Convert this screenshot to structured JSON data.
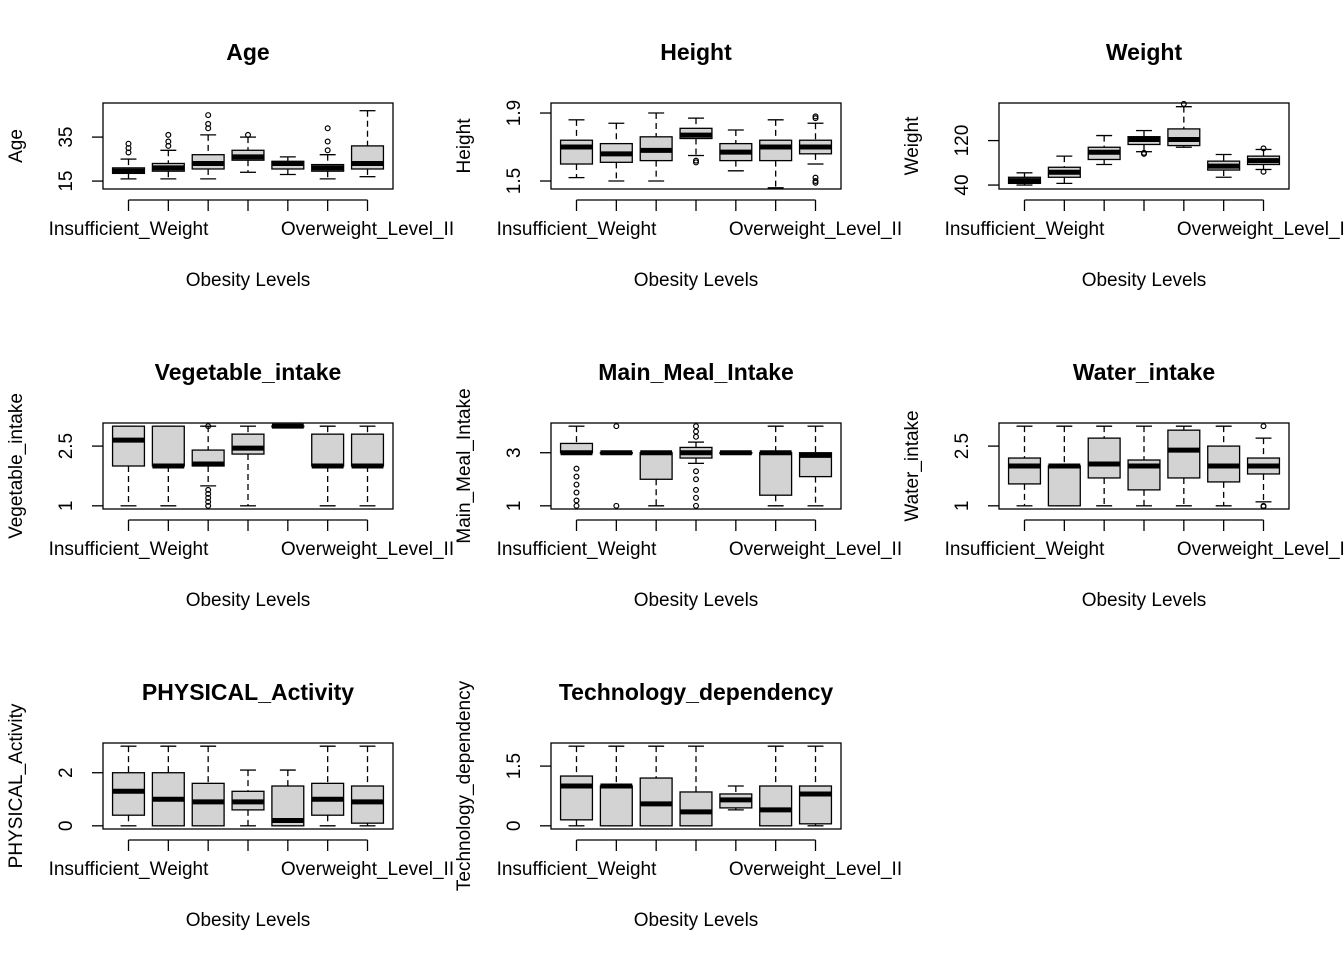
{
  "chart_data": [
    {
      "type": "box",
      "title": "Age",
      "xlabel": "Obesity Levels",
      "ylabel": "Age",
      "color": "#d3d3d3",
      "categories": [
        "Insufficient_Weight",
        null,
        null,
        null,
        null,
        null,
        "Overweight_Level_II"
      ],
      "ylim": [
        11.4,
        50.5
      ],
      "yticks": [
        15,
        35
      ],
      "boxes": [
        {
          "min": 16,
          "q1": 18.5,
          "median": 19.5,
          "q3": 21,
          "max": 25,
          "outliers": [
            28,
            30,
            32
          ]
        },
        {
          "min": 16,
          "q1": 19.5,
          "median": 21,
          "q3": 23,
          "max": 29,
          "outliers": [
            31,
            33,
            36
          ]
        },
        {
          "min": 16,
          "q1": 20.5,
          "median": 23,
          "q3": 27,
          "max": 36,
          "outliers": [
            39,
            41,
            45
          ]
        },
        {
          "min": 19,
          "q1": 24.5,
          "median": 26,
          "q3": 29,
          "max": 35,
          "outliers": [
            36
          ]
        },
        {
          "min": 18,
          "q1": 20.5,
          "median": 23,
          "q3": 24,
          "max": 26,
          "outliers": []
        },
        {
          "min": 16,
          "q1": 19.5,
          "median": 21,
          "q3": 22.5,
          "max": 27,
          "outliers": [
            29,
            33,
            39
          ]
        },
        {
          "min": 17,
          "q1": 20.5,
          "median": 23,
          "q3": 31,
          "max": 47,
          "outliers": []
        }
      ]
    },
    {
      "type": "box",
      "title": "Height",
      "xlabel": "Obesity Levels",
      "ylabel": "Height",
      "color": "#d3d3d3",
      "categories": [
        "Insufficient_Weight",
        null,
        null,
        null,
        null,
        null,
        "Overweight_Level_II"
      ],
      "ylim": [
        1.453,
        1.959
      ],
      "yticks": [
        1.5,
        1.9
      ],
      "boxes": [
        {
          "min": 1.52,
          "q1": 1.6,
          "median": 1.7,
          "q3": 1.74,
          "max": 1.86,
          "outliers": []
        },
        {
          "min": 1.5,
          "q1": 1.61,
          "median": 1.66,
          "q3": 1.72,
          "max": 1.84,
          "outliers": []
        },
        {
          "min": 1.5,
          "q1": 1.62,
          "median": 1.68,
          "q3": 1.76,
          "max": 1.9,
          "outliers": []
        },
        {
          "min": 1.65,
          "q1": 1.75,
          "median": 1.77,
          "q3": 1.81,
          "max": 1.87,
          "outliers": [
            1.62,
            1.61
          ]
        },
        {
          "min": 1.56,
          "q1": 1.62,
          "median": 1.67,
          "q3": 1.72,
          "max": 1.8,
          "outliers": []
        },
        {
          "min": 1.46,
          "q1": 1.62,
          "median": 1.7,
          "q3": 1.74,
          "max": 1.86,
          "outliers": []
        },
        {
          "min": 1.6,
          "q1": 1.66,
          "median": 1.7,
          "q3": 1.74,
          "max": 1.84,
          "outliers": [
            1.87,
            1.88,
            1.52,
            1.5,
            1.49
          ]
        }
      ]
    },
    {
      "type": "box",
      "title": "Weight",
      "xlabel": "Obesity Levels",
      "ylabel": "Weight",
      "color": "#d3d3d3",
      "categories": [
        "Insufficient_Weight",
        null,
        null,
        null,
        null,
        null,
        "Overweight_Level_II"
      ],
      "ylim": [
        32.9,
        187.6
      ],
      "yticks": [
        40,
        120
      ],
      "boxes": [
        {
          "min": 40,
          "q1": 43,
          "median": 48,
          "q3": 54,
          "max": 62,
          "outliers": []
        },
        {
          "min": 43,
          "q1": 54,
          "median": 63,
          "q3": 72,
          "max": 92,
          "outliers": []
        },
        {
          "min": 77,
          "q1": 86,
          "median": 99,
          "q3": 108,
          "max": 129,
          "outliers": []
        },
        {
          "min": 100,
          "q1": 113,
          "median": 122,
          "q3": 127,
          "max": 138,
          "outliers": [
            96,
            98
          ]
        },
        {
          "min": 108,
          "q1": 111,
          "median": 122,
          "q3": 141,
          "max": 181,
          "outliers": [
            186
          ]
        },
        {
          "min": 54,
          "q1": 67,
          "median": 74,
          "q3": 83,
          "max": 95,
          "outliers": []
        },
        {
          "min": 68,
          "q1": 77,
          "median": 84,
          "q3": 92,
          "max": 104,
          "outliers": [
            106,
            64
          ]
        }
      ]
    },
    {
      "type": "box",
      "title": "Vegetable_intake",
      "xlabel": "Obesity Levels",
      "ylabel": "Vegetable_intake",
      "color": "#d3d3d3",
      "categories": [
        "Insufficient_Weight",
        null,
        null,
        null,
        null,
        null,
        "Overweight_Level_II"
      ],
      "ylim": [
        0.92,
        3.08
      ],
      "yticks": [
        1.0,
        2.5
      ],
      "boxes": [
        {
          "min": 1,
          "q1": 2,
          "median": 2.65,
          "q3": 3,
          "max": 3,
          "outliers": []
        },
        {
          "min": 1,
          "q1": 2,
          "median": 2,
          "q3": 3,
          "max": 3,
          "outliers": []
        },
        {
          "min": 1.5,
          "q1": 2,
          "median": 2.05,
          "q3": 2.4,
          "max": 3,
          "outliers": [
            3,
            1,
            1.1,
            1.2,
            1.3,
            1.4
          ]
        },
        {
          "min": 1,
          "q1": 2.3,
          "median": 2.45,
          "q3": 2.8,
          "max": 3,
          "outliers": []
        },
        {
          "min": 3,
          "q1": 3,
          "median": 3,
          "q3": 3,
          "max": 3,
          "outliers": []
        },
        {
          "min": 1,
          "q1": 2,
          "median": 2,
          "q3": 2.8,
          "max": 3,
          "outliers": []
        },
        {
          "min": 1,
          "q1": 2,
          "median": 2,
          "q3": 2.8,
          "max": 3,
          "outliers": []
        }
      ]
    },
    {
      "type": "box",
      "title": "Main_Meal_Intake",
      "xlabel": "Obesity Levels",
      "ylabel": "Main_Meal_Intake",
      "color": "#d3d3d3",
      "categories": [
        "Insufficient_Weight",
        null,
        null,
        null,
        null,
        null,
        "Overweight_Level_II"
      ],
      "ylim": [
        0.88,
        4.12
      ],
      "yticks": [
        1.0,
        3.0
      ],
      "boxes": [
        {
          "min": 3,
          "q1": 3,
          "median": 3,
          "q3": 3.35,
          "max": 4,
          "outliers": [
            1,
            1.2,
            1.5,
            1.8,
            2.1,
            2.4
          ]
        },
        {
          "min": 3,
          "q1": 3,
          "median": 3,
          "q3": 3,
          "max": 3,
          "outliers": [
            4,
            1
          ]
        },
        {
          "min": 1,
          "q1": 2,
          "median": 3,
          "q3": 3,
          "max": 3,
          "outliers": []
        },
        {
          "min": 2.6,
          "q1": 2.8,
          "median": 3,
          "q3": 3.2,
          "max": 3.4,
          "outliers": [
            4,
            3.8,
            3.6,
            1,
            1.3,
            1.6,
            2,
            2.3
          ]
        },
        {
          "min": 3,
          "q1": 3,
          "median": 3,
          "q3": 3,
          "max": 3,
          "outliers": []
        },
        {
          "min": 1,
          "q1": 1.4,
          "median": 3,
          "q3": 3,
          "max": 4,
          "outliers": []
        },
        {
          "min": 1,
          "q1": 2.1,
          "median": 2.9,
          "q3": 3,
          "max": 4,
          "outliers": []
        }
      ]
    },
    {
      "type": "box",
      "title": "Water_intake",
      "xlabel": "Obesity Levels",
      "ylabel": "Water_intake",
      "color": "#d3d3d3",
      "categories": [
        "Insufficient_Weight",
        null,
        null,
        null,
        null,
        null,
        "Overweight_Level_II"
      ],
      "ylim": [
        0.92,
        3.08
      ],
      "yticks": [
        1.0,
        2.5
      ],
      "boxes": [
        {
          "min": 1,
          "q1": 1.55,
          "median": 2,
          "q3": 2.2,
          "max": 3,
          "outliers": []
        },
        {
          "min": 1,
          "q1": 1,
          "median": 2,
          "q3": 2,
          "max": 3,
          "outliers": []
        },
        {
          "min": 1,
          "q1": 1.7,
          "median": 2.05,
          "q3": 2.7,
          "max": 3,
          "outliers": []
        },
        {
          "min": 1,
          "q1": 1.4,
          "median": 2,
          "q3": 2.15,
          "max": 3,
          "outliers": []
        },
        {
          "min": 1,
          "q1": 1.7,
          "median": 2.4,
          "q3": 2.9,
          "max": 3,
          "outliers": []
        },
        {
          "min": 1,
          "q1": 1.6,
          "median": 2,
          "q3": 2.5,
          "max": 3,
          "outliers": []
        },
        {
          "min": 1.1,
          "q1": 1.8,
          "median": 2,
          "q3": 2.2,
          "max": 2.7,
          "outliers": [
            3,
            1,
            0.98
          ]
        }
      ]
    },
    {
      "type": "box",
      "title": "PHYSICAL_Activity",
      "xlabel": "Obesity Levels",
      "ylabel": "PHYSICAL_Activity",
      "color": "#d3d3d3",
      "categories": [
        "Insufficient_Weight",
        null,
        null,
        null,
        null,
        null,
        "Overweight_Level_II"
      ],
      "ylim": [
        -0.12,
        3.12
      ],
      "yticks": [
        0.0,
        2.0
      ],
      "boxes": [
        {
          "min": 0,
          "q1": 0.4,
          "median": 1.3,
          "q3": 2,
          "max": 3,
          "outliers": []
        },
        {
          "min": 0,
          "q1": 0,
          "median": 1,
          "q3": 2,
          "max": 3,
          "outliers": []
        },
        {
          "min": 0,
          "q1": 0,
          "median": 0.9,
          "q3": 1.6,
          "max": 3,
          "outliers": []
        },
        {
          "min": 0,
          "q1": 0.6,
          "median": 0.9,
          "q3": 1.3,
          "max": 2.1,
          "outliers": []
        },
        {
          "min": 0,
          "q1": 0,
          "median": 0.2,
          "q3": 1.5,
          "max": 2.1,
          "outliers": []
        },
        {
          "min": 0,
          "q1": 0.4,
          "median": 1,
          "q3": 1.6,
          "max": 3,
          "outliers": []
        },
        {
          "min": 0,
          "q1": 0.1,
          "median": 0.9,
          "q3": 1.5,
          "max": 3,
          "outliers": []
        }
      ]
    },
    {
      "type": "box",
      "title": "Technology_dependency",
      "xlabel": "Obesity Levels",
      "ylabel": "Technology_dependency",
      "color": "#d3d3d3",
      "categories": [
        "Insufficient_Weight",
        null,
        null,
        null,
        null,
        null,
        "Overweight_Level_II"
      ],
      "ylim": [
        -0.08,
        2.08
      ],
      "yticks": [
        0.0,
        1.5
      ],
      "boxes": [
        {
          "min": 0,
          "q1": 0.15,
          "median": 1,
          "q3": 1.25,
          "max": 2,
          "outliers": []
        },
        {
          "min": 0,
          "q1": 0,
          "median": 1,
          "q3": 1,
          "max": 2,
          "outliers": []
        },
        {
          "min": 0,
          "q1": 0,
          "median": 0.55,
          "q3": 1.2,
          "max": 2,
          "outliers": []
        },
        {
          "min": 0,
          "q1": 0,
          "median": 0.35,
          "q3": 0.85,
          "max": 2,
          "outliers": []
        },
        {
          "min": 0.4,
          "q1": 0.45,
          "median": 0.65,
          "q3": 0.8,
          "max": 1.0,
          "outliers": []
        },
        {
          "min": 0,
          "q1": 0,
          "median": 0.4,
          "q3": 1,
          "max": 2,
          "outliers": []
        },
        {
          "min": 0,
          "q1": 0.05,
          "median": 0.8,
          "q3": 1.0,
          "max": 2,
          "outliers": []
        }
      ]
    }
  ]
}
